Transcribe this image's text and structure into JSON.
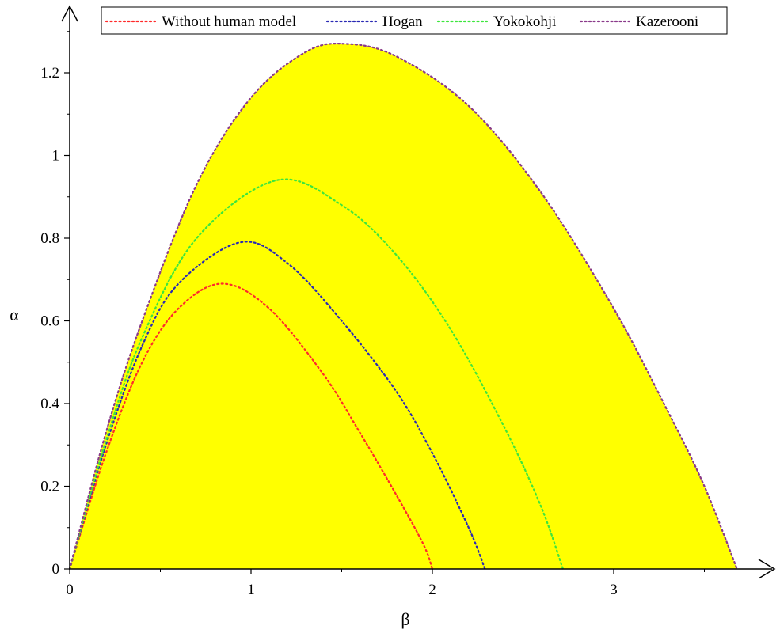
{
  "chart_data": {
    "type": "area",
    "xlabel": "β",
    "ylabel": "α",
    "xlim": [
      0,
      3.9
    ],
    "ylim": [
      0,
      1.33
    ],
    "x_ticks": [
      "0",
      "1",
      "2",
      "3"
    ],
    "y_ticks": [
      "0",
      "0.2",
      "0.4",
      "0.6",
      "0.8",
      "1",
      "1.2"
    ],
    "fill_color": "#ffff00",
    "legend_position": "top",
    "series": [
      {
        "name": "Without human model",
        "color": "#ff2a2a",
        "x": [
          0,
          0.2,
          0.4,
          0.6,
          0.84,
          1.1,
          1.4,
          1.6,
          1.8,
          1.95,
          2.0
        ],
        "y": [
          0,
          0.28,
          0.5,
          0.63,
          0.69,
          0.63,
          0.47,
          0.33,
          0.18,
          0.06,
          0
        ]
      },
      {
        "name": "Hogan",
        "color": "#2a2ab4",
        "x": [
          0,
          0.2,
          0.4,
          0.6,
          0.94,
          1.2,
          1.5,
          1.8,
          2.0,
          2.2,
          2.29
        ],
        "y": [
          0,
          0.3,
          0.54,
          0.69,
          0.79,
          0.74,
          0.6,
          0.43,
          0.28,
          0.1,
          0
        ]
      },
      {
        "name": "Yokokohji",
        "color": "#3ce63c",
        "x": [
          0,
          0.2,
          0.4,
          0.7,
          1.14,
          1.5,
          1.8,
          2.1,
          2.4,
          2.6,
          2.72
        ],
        "y": [
          0,
          0.31,
          0.56,
          0.8,
          0.94,
          0.88,
          0.76,
          0.58,
          0.34,
          0.15,
          0
        ]
      },
      {
        "name": "Kazerooni",
        "color": "#8a3a8a",
        "x": [
          0,
          0.2,
          0.4,
          0.7,
          1.0,
          1.3,
          1.52,
          1.8,
          2.2,
          2.6,
          3.0,
          3.3,
          3.5,
          3.68
        ],
        "y": [
          0,
          0.33,
          0.6,
          0.93,
          1.14,
          1.25,
          1.27,
          1.24,
          1.12,
          0.91,
          0.63,
          0.38,
          0.2,
          0
        ]
      }
    ]
  }
}
